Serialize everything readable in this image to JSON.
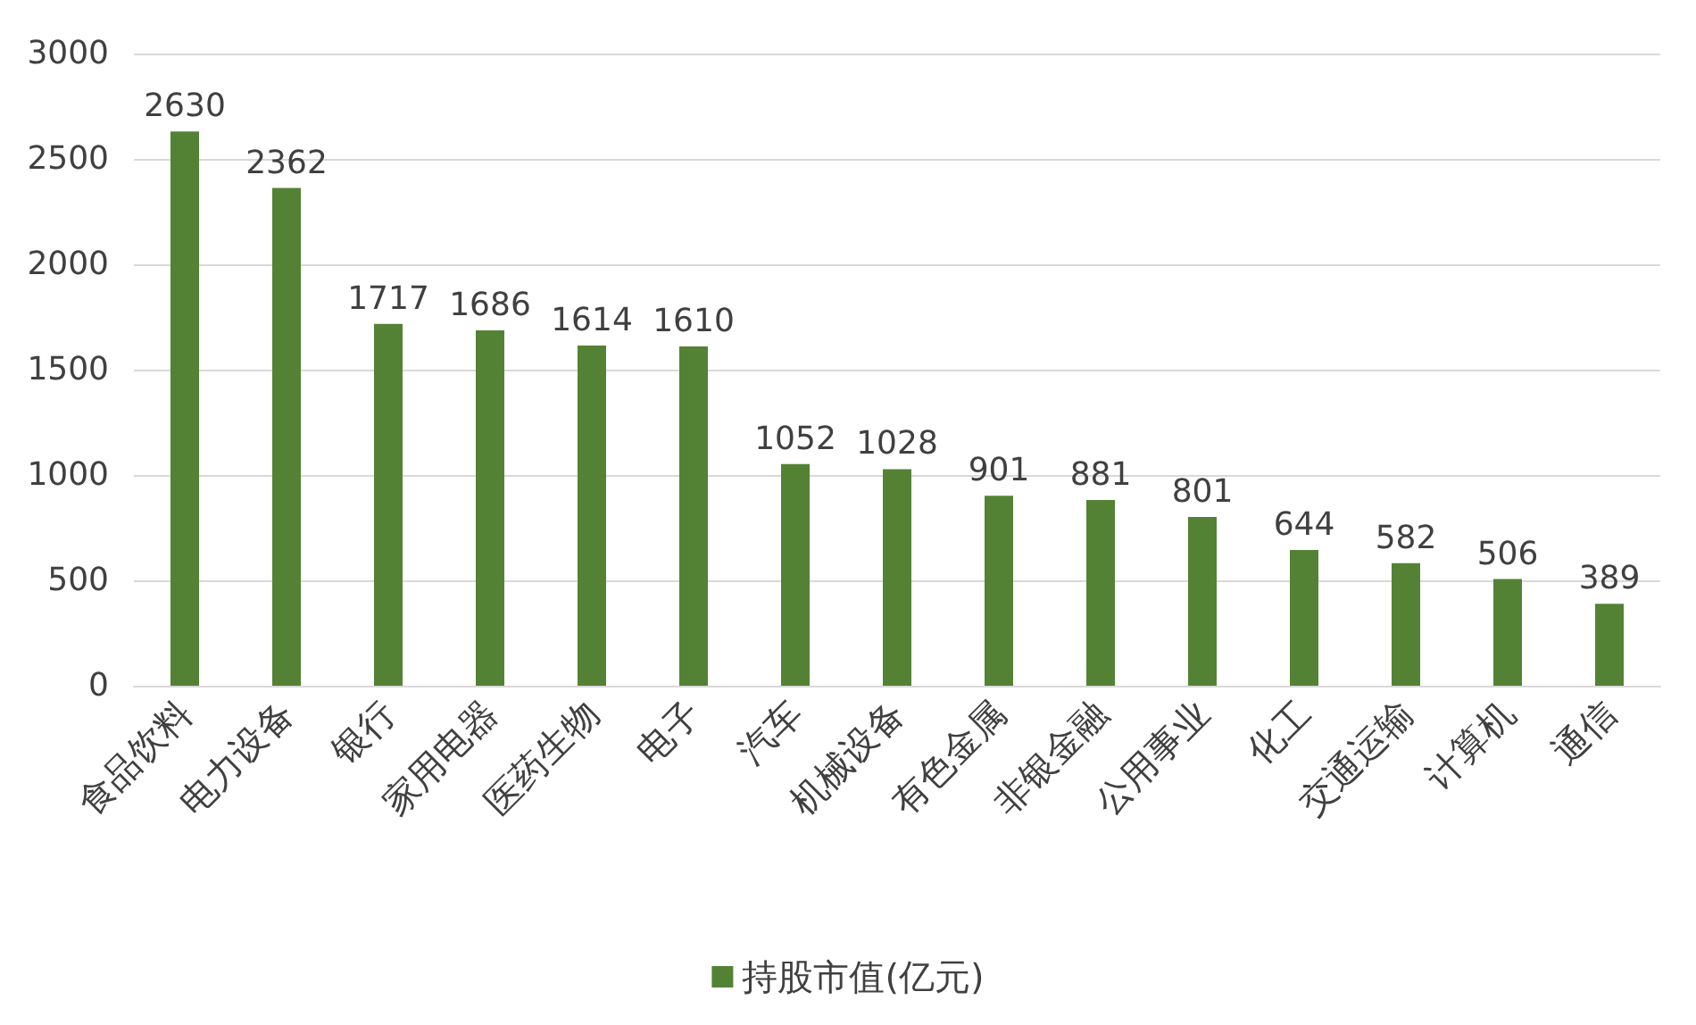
{
  "chart_data": {
    "type": "bar",
    "categories": [
      "食品饮料",
      "电力设备",
      "银行",
      "家用电器",
      "医药生物",
      "电子",
      "汽车",
      "机械设备",
      "有色金属",
      "非银金融",
      "公用事业",
      "化工",
      "交通运输",
      "计算机",
      "通信"
    ],
    "series": [
      {
        "name": "持股市值(亿元)",
        "color": "#548235",
        "values": [
          2630,
          2362,
          1717,
          1686,
          1614,
          1610,
          1052,
          1028,
          901,
          881,
          801,
          644,
          582,
          506,
          389
        ]
      }
    ],
    "ylim": [
      0,
      3000
    ],
    "yticks": [
      0,
      500,
      1000,
      1500,
      2000,
      2500,
      3000
    ],
    "grid": "y",
    "legend": "bottom",
    "data_labels": true
  }
}
